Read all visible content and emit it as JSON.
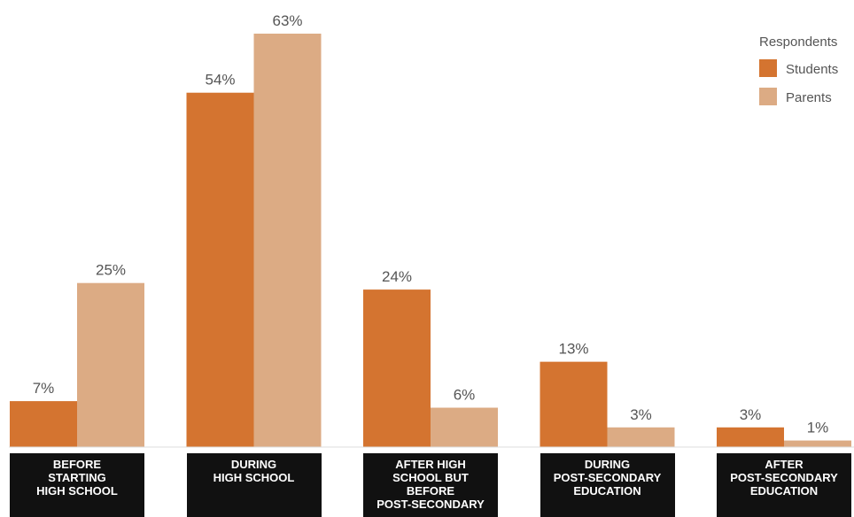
{
  "chart_data": {
    "type": "bar",
    "categories": [
      [
        "BEFORE",
        "STARTING",
        "HIGH SCHOOL"
      ],
      [
        "DURING",
        "HIGH SCHOOL"
      ],
      [
        "AFTER HIGH",
        "SCHOOL BUT",
        "BEFORE",
        "POST-SECONDARY"
      ],
      [
        "DURING",
        "POST-SECONDARY",
        "EDUCATION"
      ],
      [
        "AFTER",
        "POST-SECONDARY",
        "EDUCATION"
      ]
    ],
    "series": [
      {
        "name": "Students",
        "color": "#d47430",
        "values": [
          7,
          54,
          24,
          13,
          3
        ],
        "labels": [
          "7%",
          "54%",
          "24%",
          "13%",
          "3%"
        ]
      },
      {
        "name": "Parents",
        "color": "#dcab84",
        "values": [
          25,
          63,
          6,
          3,
          1
        ],
        "labels": [
          "25%",
          "63%",
          "6%",
          "3%",
          "1%"
        ]
      }
    ],
    "legend_title": "Respondents",
    "legend_position": "top-right",
    "ylim": [
      0,
      63
    ],
    "grid": false
  }
}
